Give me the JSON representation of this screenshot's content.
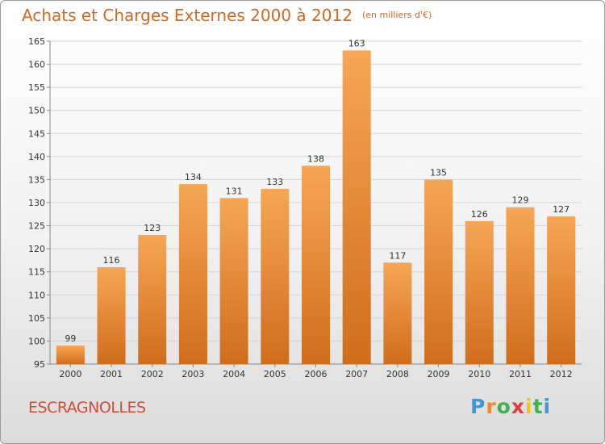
{
  "header": {
    "title": "Achats et Charges Externes 2000 à 2012",
    "unit": "(en milliers d'€)"
  },
  "footer": {
    "place": "ESCRAGNOLLES",
    "brand": "Proxiti"
  },
  "colors": {
    "accent": "#d2691e",
    "bar_light": "#f6a655",
    "bar_dark": "#d06d1c",
    "place": "#d24c3a"
  },
  "chart_data": {
    "type": "bar",
    "title": "Achats et Charges Externes 2000 à 2012",
    "subtitle": "(en milliers d'€)",
    "xlabel": "",
    "ylabel": "",
    "categories": [
      "2000",
      "2001",
      "2002",
      "2003",
      "2004",
      "2005",
      "2006",
      "2007",
      "2008",
      "2009",
      "2010",
      "2011",
      "2012"
    ],
    "values": [
      99,
      116,
      123,
      134,
      131,
      133,
      138,
      163,
      117,
      135,
      126,
      129,
      127
    ],
    "ylim": [
      95,
      165
    ],
    "yticks": [
      95,
      100,
      105,
      110,
      115,
      120,
      125,
      130,
      135,
      140,
      145,
      150,
      155,
      160,
      165
    ],
    "grid": true,
    "legend": "none"
  }
}
